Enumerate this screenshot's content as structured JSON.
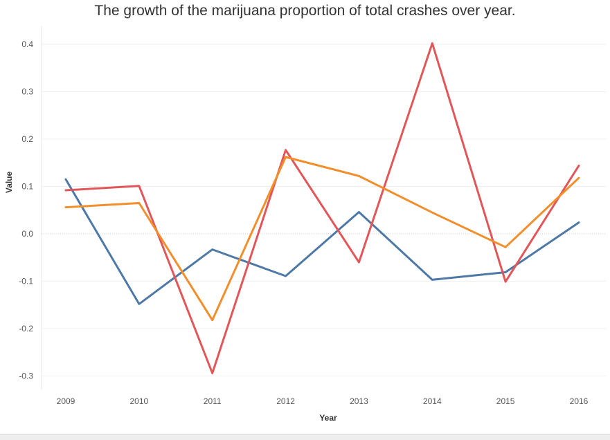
{
  "chart_data": {
    "type": "line",
    "title": "The growth of the marijuana proportion of total crashes over year.",
    "xlabel": "Year",
    "ylabel": "Value",
    "categories": [
      "2009",
      "2010",
      "2011",
      "2012",
      "2013",
      "2014",
      "2015",
      "2016"
    ],
    "y_ticks": [
      "0.4",
      "0.3",
      "0.2",
      "0.1",
      "0.0",
      "-0.1",
      "-0.2",
      "-0.3"
    ],
    "ylim": [
      -0.34,
      0.44
    ],
    "grid": true,
    "series": [
      {
        "color": "#4e79a7",
        "values": [
          0.115,
          -0.148,
          -0.033,
          -0.089,
          0.046,
          -0.097,
          -0.081,
          0.024
        ]
      },
      {
        "color": "#e15759",
        "values": [
          0.092,
          0.101,
          -0.294,
          0.177,
          -0.06,
          0.402,
          -0.101,
          0.144
        ]
      },
      {
        "color": "#f28e2b",
        "values": [
          0.056,
          0.065,
          -0.182,
          0.162,
          0.122,
          0.045,
          -0.028,
          0.118
        ]
      }
    ]
  }
}
